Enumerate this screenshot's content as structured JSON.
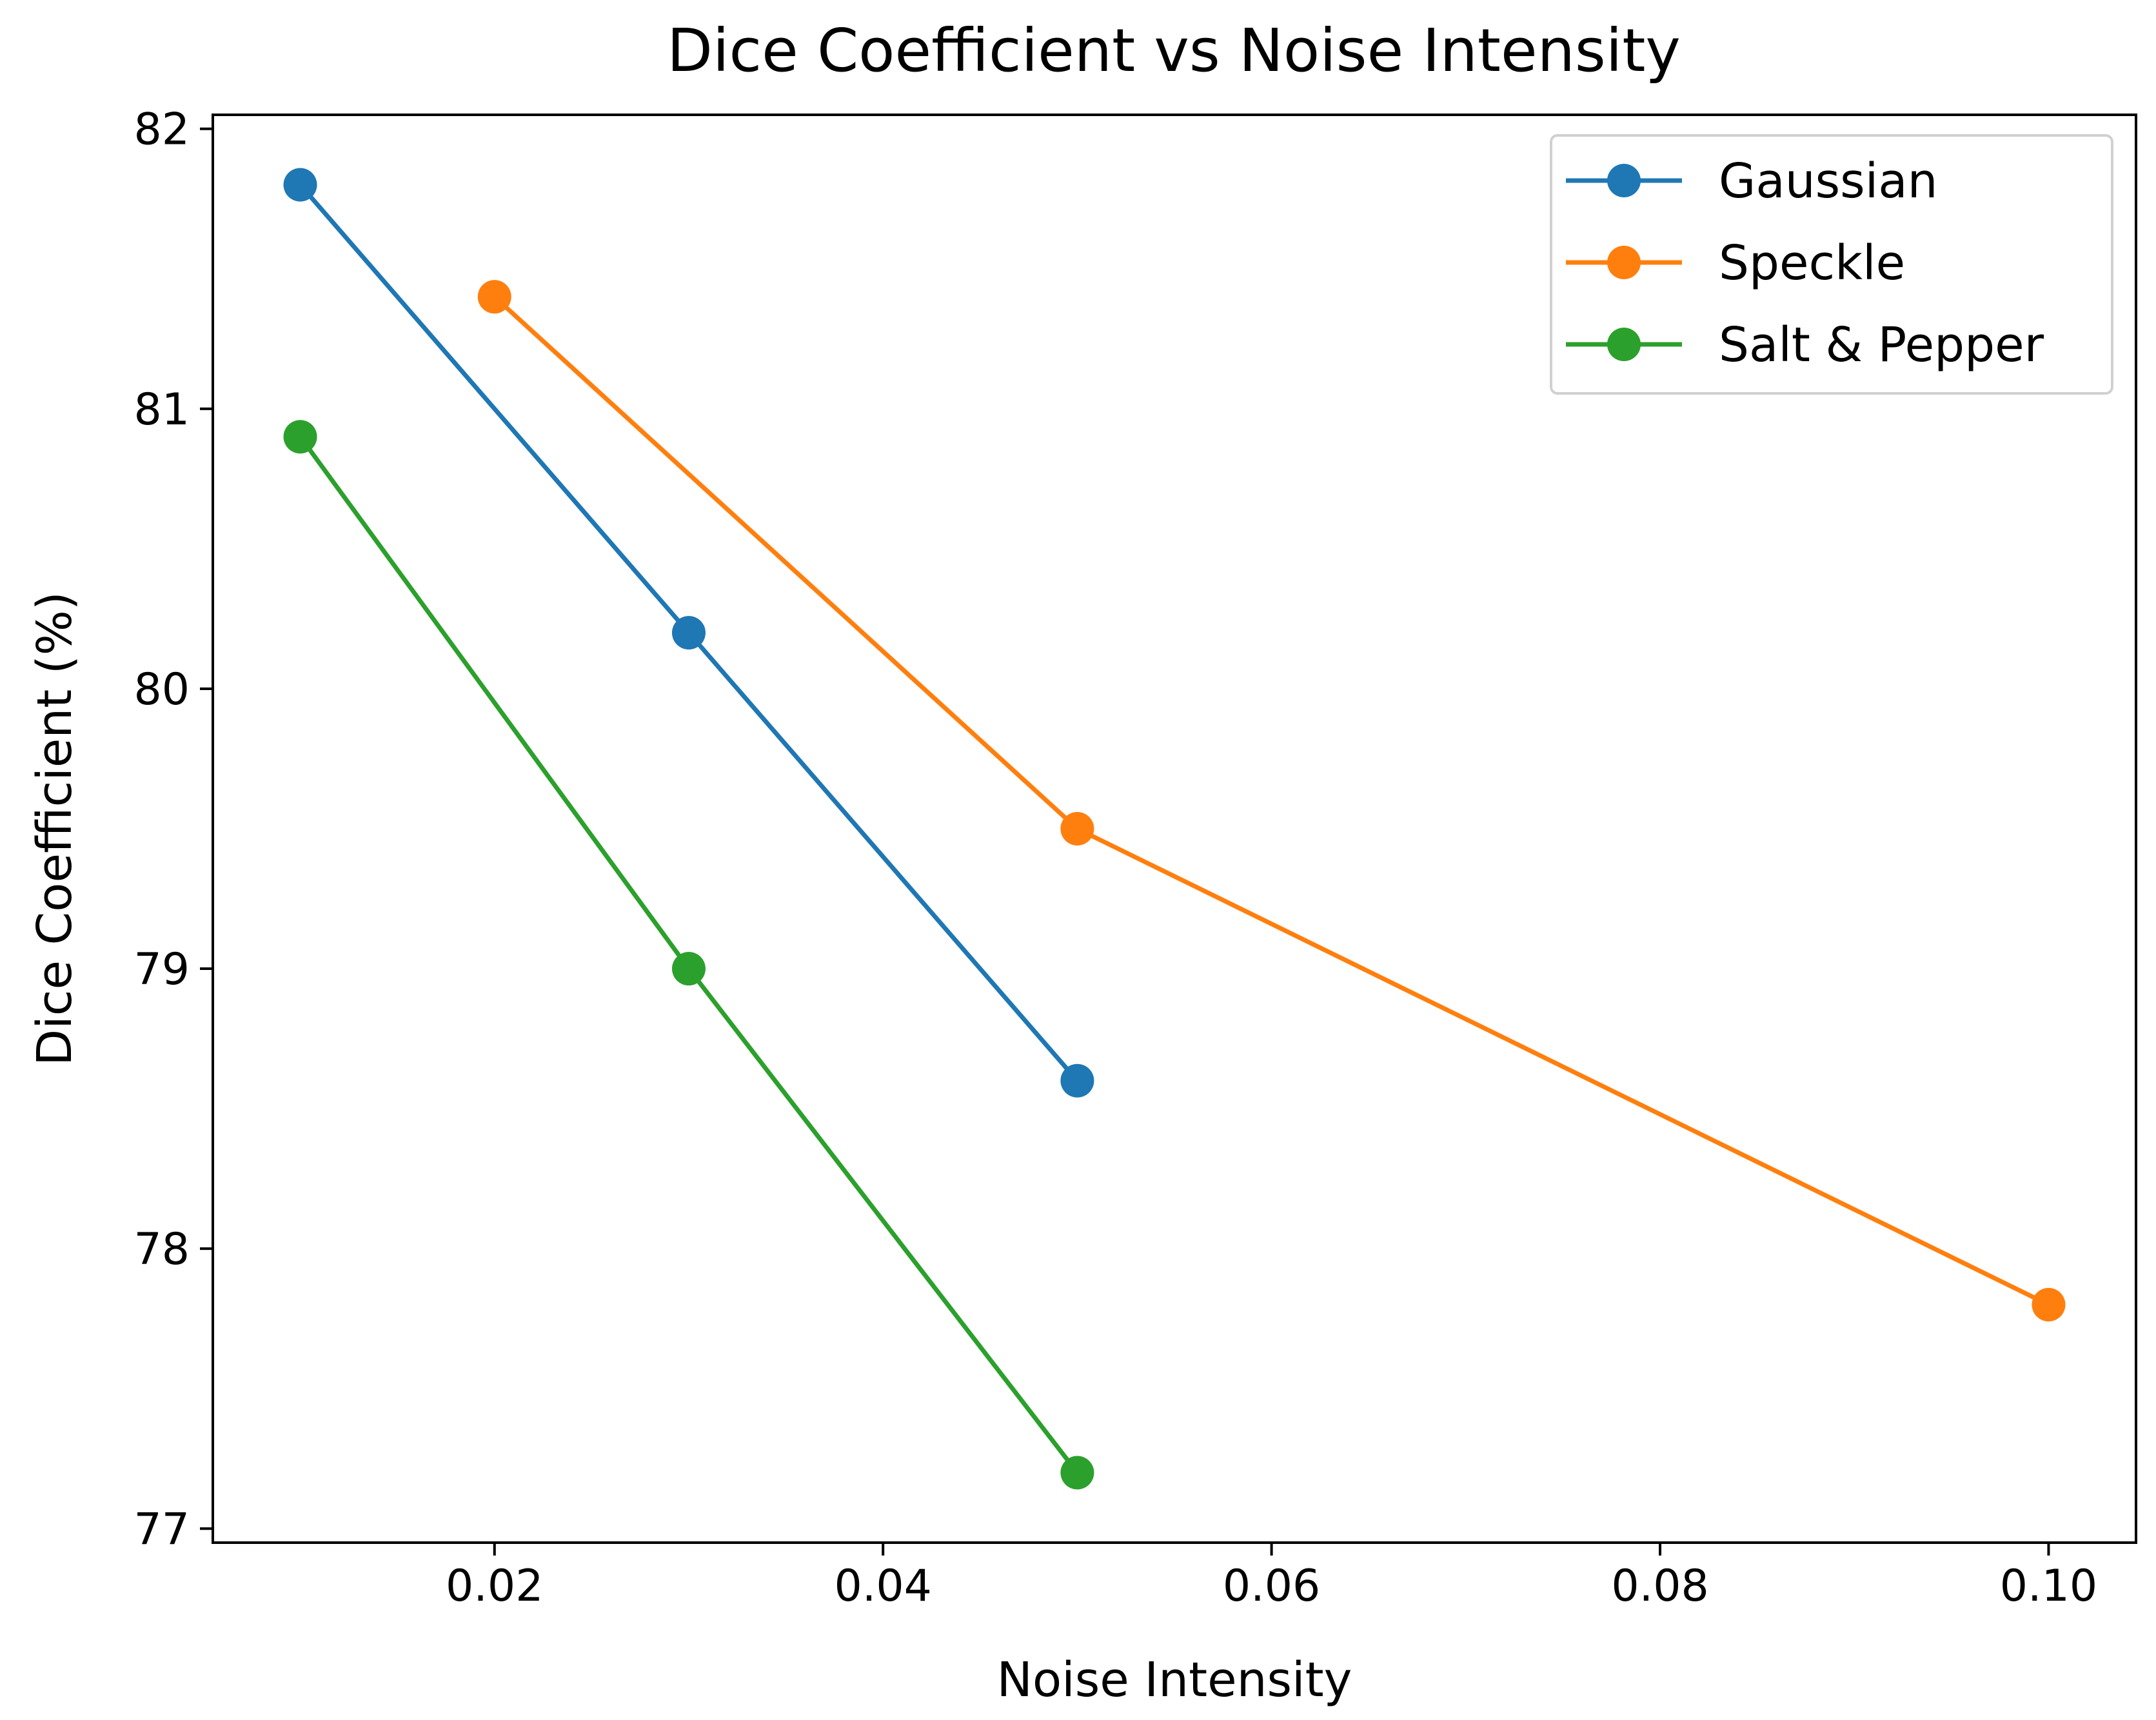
{
  "chart_data": {
    "type": "line",
    "title": "Dice Coefficient vs Noise Intensity",
    "xlabel": "Noise Intensity",
    "ylabel": "Dice Coefficient (%)",
    "xlim": [
      0.0055,
      0.1045
    ],
    "ylim": [
      76.95,
      82.05
    ],
    "xticks": [
      0.02,
      0.04,
      0.06,
      0.08,
      0.1
    ],
    "xtick_labels": [
      "0.02",
      "0.04",
      "0.06",
      "0.08",
      "0.10"
    ],
    "yticks": [
      77,
      78,
      79,
      80,
      81,
      82
    ],
    "ytick_labels": [
      "77",
      "78",
      "79",
      "80",
      "81",
      "82"
    ],
    "grid": false,
    "legend_position": "top-right",
    "series": [
      {
        "name": "Gaussian",
        "color": "#1f77b4",
        "x": [
          0.01,
          0.03,
          0.05
        ],
        "y": [
          81.8,
          80.2,
          78.6
        ]
      },
      {
        "name": "Speckle",
        "color": "#ff7f0e",
        "x": [
          0.02,
          0.05,
          0.1
        ],
        "y": [
          81.4,
          79.5,
          77.8
        ]
      },
      {
        "name": "Salt & Pepper",
        "color": "#2ca02c",
        "x": [
          0.01,
          0.03,
          0.05
        ],
        "y": [
          80.9,
          79.0,
          77.2
        ]
      }
    ]
  }
}
